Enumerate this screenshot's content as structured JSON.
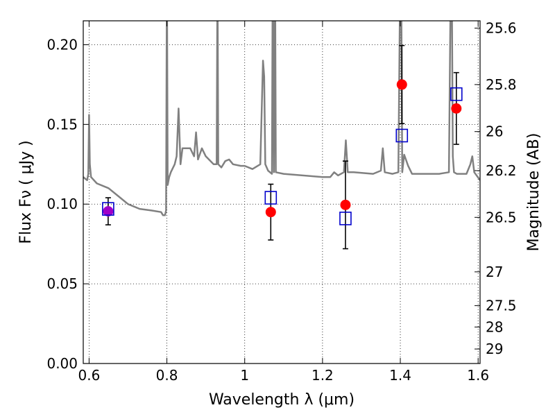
{
  "chart_data": {
    "type": "scatter",
    "xlabel": "Wavelength  λ (μm)",
    "ylabel": "Flux  Fν  ( μJy )",
    "y2label": "Magnitude (AB)",
    "xlim": [
      0.585,
      1.605
    ],
    "ylim": [
      0.0,
      0.215
    ],
    "grid": true,
    "x_ticks": [
      {
        "value": 0.6,
        "label": "0.6"
      },
      {
        "value": 0.8,
        "label": "0.8"
      },
      {
        "value": 1.0,
        "label": "1"
      },
      {
        "value": 1.2,
        "label": "1.2"
      },
      {
        "value": 1.4,
        "label": "1.4"
      },
      {
        "value": 1.6,
        "label": "1.6"
      }
    ],
    "y_ticks": [
      {
        "value": 0.0,
        "label": "0.00"
      },
      {
        "value": 0.05,
        "label": "0.05"
      },
      {
        "value": 0.1,
        "label": "0.10"
      },
      {
        "value": 0.15,
        "label": "0.15"
      },
      {
        "value": 0.2,
        "label": "0.20"
      }
    ],
    "y2_ticks": [
      {
        "flux": 0.2104,
        "label": "25.6"
      },
      {
        "flux": 0.175,
        "label": "25.8"
      },
      {
        "flux": 0.1455,
        "label": "26"
      },
      {
        "flux": 0.121,
        "label": "26.2"
      },
      {
        "flux": 0.0917,
        "label": "26.5"
      },
      {
        "flux": 0.0575,
        "label": "27"
      },
      {
        "flux": 0.0363,
        "label": "27.5"
      },
      {
        "flux": 0.0229,
        "label": "28"
      },
      {
        "flux": 0.0091,
        "label": "29"
      }
    ],
    "colors": {
      "model": "#808080",
      "observed": "#ff0000",
      "model_photometry": "#0000cc",
      "overlap_point": "#a000c8",
      "errorbar": "#000000"
    },
    "model_spectrum": {
      "x": [
        0.585,
        0.595,
        0.598,
        0.6,
        0.602,
        0.605,
        0.62,
        0.65,
        0.68,
        0.7,
        0.73,
        0.76,
        0.785,
        0.79,
        0.795,
        0.798,
        0.8,
        0.802,
        0.806,
        0.81,
        0.82,
        0.825,
        0.83,
        0.835,
        0.84,
        0.86,
        0.87,
        0.875,
        0.88,
        0.89,
        0.9,
        0.92,
        0.928,
        0.93,
        0.932,
        0.94,
        0.95,
        0.96,
        0.97,
        0.99,
        1.0,
        1.02,
        1.04,
        1.047,
        1.05,
        1.053,
        1.06,
        1.07,
        1.072,
        1.075,
        1.078,
        1.08,
        1.1,
        1.2,
        1.22,
        1.23,
        1.24,
        1.255,
        1.26,
        1.265,
        1.28,
        1.33,
        1.35,
        1.355,
        1.36,
        1.38,
        1.395,
        1.4,
        1.402,
        1.405,
        1.41,
        1.42,
        1.43,
        1.47,
        1.5,
        1.525,
        1.53,
        1.532,
        1.535,
        1.538,
        1.545,
        1.57,
        1.58,
        1.585,
        1.59,
        1.605
      ],
      "y": [
        0.117,
        0.115,
        0.119,
        0.156,
        0.125,
        0.117,
        0.113,
        0.11,
        0.104,
        0.1,
        0.097,
        0.096,
        0.095,
        0.093,
        0.093,
        0.096,
        0.25,
        0.112,
        0.117,
        0.12,
        0.125,
        0.13,
        0.16,
        0.125,
        0.135,
        0.135,
        0.13,
        0.145,
        0.128,
        0.135,
        0.13,
        0.125,
        0.125,
        0.25,
        0.125,
        0.123,
        0.127,
        0.128,
        0.125,
        0.124,
        0.124,
        0.122,
        0.125,
        0.19,
        0.18,
        0.125,
        0.121,
        0.119,
        0.25,
        0.12,
        0.25,
        0.12,
        0.119,
        0.117,
        0.117,
        0.12,
        0.118,
        0.12,
        0.14,
        0.12,
        0.12,
        0.119,
        0.121,
        0.135,
        0.12,
        0.119,
        0.12,
        0.25,
        0.25,
        0.12,
        0.131,
        0.124,
        0.119,
        0.119,
        0.119,
        0.12,
        0.25,
        0.25,
        0.13,
        0.12,
        0.119,
        0.119,
        0.125,
        0.13,
        0.12,
        0.115
      ]
    },
    "observed": [
      {
        "x": 0.649,
        "y": 0.0955,
        "yerr": 0.0085
      },
      {
        "x": 1.067,
        "y": 0.095,
        "yerr": 0.0175
      },
      {
        "x": 1.259,
        "y": 0.0995,
        "yerr": 0.0275
      },
      {
        "x": 1.404,
        "y": 0.175,
        "yerr": 0.0245
      },
      {
        "x": 1.544,
        "y": 0.16,
        "yerr": 0.0225
      }
    ],
    "model_photometry": [
      {
        "x": 0.649,
        "y": 0.097
      },
      {
        "x": 1.067,
        "y": 0.104
      },
      {
        "x": 1.259,
        "y": 0.091
      },
      {
        "x": 1.404,
        "y": 0.143
      },
      {
        "x": 1.544,
        "y": 0.169
      }
    ]
  }
}
